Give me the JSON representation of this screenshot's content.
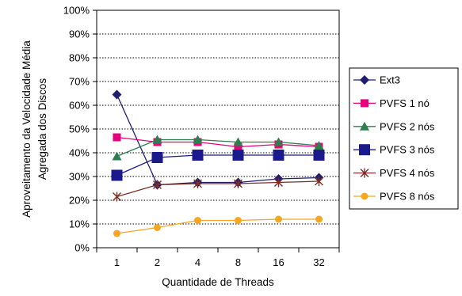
{
  "chart_data": {
    "type": "line",
    "title": "",
    "xlabel": "Quantidade de Threads",
    "ylabel_line1": "Aproveitamento da Velocidade Média",
    "ylabel_line2": "Agregada dos Discos",
    "categories": [
      "1",
      "2",
      "4",
      "8",
      "16",
      "32"
    ],
    "y_ticks": [
      "0%",
      "10%",
      "20%",
      "30%",
      "40%",
      "50%",
      "60%",
      "70%",
      "80%",
      "90%",
      "100%"
    ],
    "ylim": [
      0,
      100
    ],
    "grid": "horizontal dotted",
    "legend_position": "right",
    "series": [
      {
        "name": "Ext3",
        "color": "#1f1f6e",
        "marker": "diamond",
        "values": [
          64.5,
          26.5,
          27.5,
          27.5,
          29,
          29.5
        ]
      },
      {
        "name": "PVFS 1 nó",
        "color": "#e6007e",
        "marker": "square",
        "values": [
          46.5,
          44.5,
          44.5,
          42.5,
          43.5,
          42.5
        ]
      },
      {
        "name": "PVFS 2 nós",
        "color": "#2e7d4f",
        "marker": "triangle",
        "values": [
          38.5,
          45.5,
          45.5,
          44.5,
          44.5,
          43
        ]
      },
      {
        "name": "PVFS 3 nós",
        "color": "#1a1a8c",
        "marker": "bigsquare",
        "values": [
          30.5,
          38,
          39,
          39,
          39,
          39
        ]
      },
      {
        "name": "PVFS 4 nós",
        "color": "#7a2e24",
        "marker": "star",
        "values": [
          21.5,
          26.5,
          27,
          27,
          27.5,
          28
        ]
      },
      {
        "name": "PVFS 8 nós",
        "color": "#f5a623",
        "marker": "circle",
        "values": [
          6,
          8.5,
          11.5,
          11.5,
          12,
          12
        ]
      }
    ]
  }
}
